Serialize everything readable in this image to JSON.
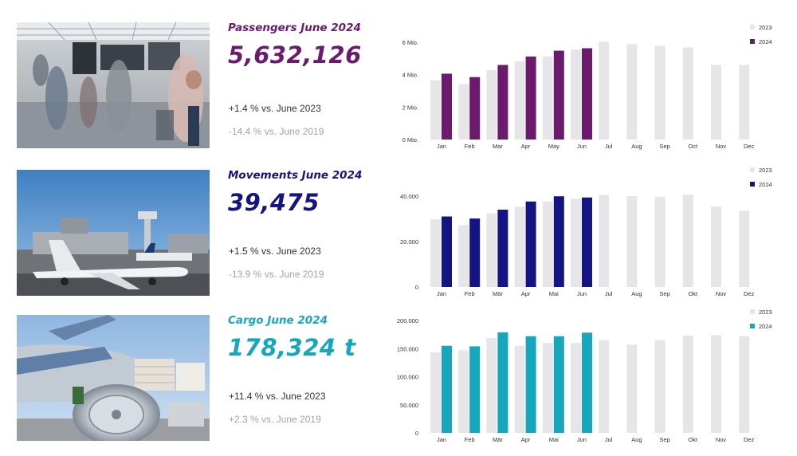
{
  "panels": [
    {
      "title": "Passengers June 2024",
      "value": "5,632,126",
      "vs_prev": "+1.4 % vs. June 2023",
      "vs_2019": "-14.4 % vs. June 2019",
      "accent": "#6b1a6e",
      "photo": "airport-terminal-photo"
    },
    {
      "title": "Movements June 2024",
      "value": "39,475",
      "vs_prev": "+1.5 % vs. June 2023",
      "vs_2019": "-13.9 % vs. June 2019",
      "accent": "#141485",
      "photo": "aircraft-apron-photo"
    },
    {
      "title": "Cargo June 2024",
      "value": "178,324 t",
      "vs_prev": "+11.4 % vs. June 2023",
      "vs_2019": "+2.3 % vs. June 2019",
      "accent": "#17a7bd",
      "photo": "cargo-aircraft-photo"
    }
  ],
  "chart_data": [
    {
      "type": "bar",
      "categories": [
        "Jan",
        "Feb",
        "Mar",
        "Apr",
        "May",
        "Jun",
        "Jul",
        "Aug",
        "Sep",
        "Oct",
        "Nov",
        "Dec"
      ],
      "series": [
        {
          "name": "2023",
          "color": "#e6e6e9",
          "values": [
            3.65,
            3.42,
            4.28,
            4.82,
            5.12,
            5.55,
            6.03,
            5.88,
            5.78,
            5.68,
            4.6,
            4.6
          ]
        },
        {
          "name": "2024",
          "color": "#6b1a6e",
          "values": [
            4.06,
            3.85,
            4.6,
            5.12,
            5.48,
            5.63,
            null,
            null,
            null,
            null,
            null,
            null
          ]
        }
      ],
      "yticks": [
        0,
        2,
        4,
        6
      ],
      "ytick_labels": [
        "0 Mio.",
        "2 Mio.",
        "4 Mio.",
        "6 Mio."
      ],
      "ylim": [
        0,
        6
      ],
      "legend": "top-right"
    },
    {
      "type": "bar",
      "categories": [
        "Jan",
        "Feb",
        "Mär",
        "Apr",
        "Mai",
        "Jun",
        "Jul",
        "Aug",
        "Sep",
        "Okt",
        "Nov",
        "Dez"
      ],
      "series": [
        {
          "name": "2023",
          "color": "#e6e6e9",
          "values": [
            29800,
            27300,
            32500,
            35400,
            37700,
            38900,
            40600,
            40100,
            39800,
            40700,
            35500,
            33600
          ]
        },
        {
          "name": "2024",
          "color": "#141485",
          "values": [
            31100,
            30200,
            34100,
            37700,
            40000,
            39475,
            null,
            null,
            null,
            null,
            null,
            null
          ]
        }
      ],
      "yticks": [
        0,
        20000,
        40000
      ],
      "ytick_labels": [
        "0",
        "20.000",
        "40.000"
      ],
      "ylim": [
        0,
        45000
      ],
      "legend": "top-right"
    },
    {
      "type": "bar",
      "categories": [
        "Jan",
        "Feb",
        "Mär",
        "Apr",
        "Mai",
        "Jun",
        "Jul",
        "Aug",
        "Sep",
        "Okt",
        "Nov",
        "Dez"
      ],
      "series": [
        {
          "name": "2023",
          "color": "#e6e6e9",
          "values": [
            143000,
            147000,
            169000,
            155000,
            160000,
            160000,
            165000,
            157000,
            165000,
            173000,
            174000,
            172000
          ]
        },
        {
          "name": "2024",
          "color": "#17a7bd",
          "values": [
            155000,
            154000,
            179000,
            172000,
            172000,
            178324,
            null,
            null,
            null,
            null,
            null,
            null
          ]
        }
      ],
      "yticks": [
        0,
        50000,
        100000,
        150000,
        200000
      ],
      "ytick_labels": [
        "0",
        "50.000",
        "100.000",
        "150.000",
        "200.000"
      ],
      "ylim": [
        0,
        200000
      ],
      "legend": "top-right"
    }
  ]
}
